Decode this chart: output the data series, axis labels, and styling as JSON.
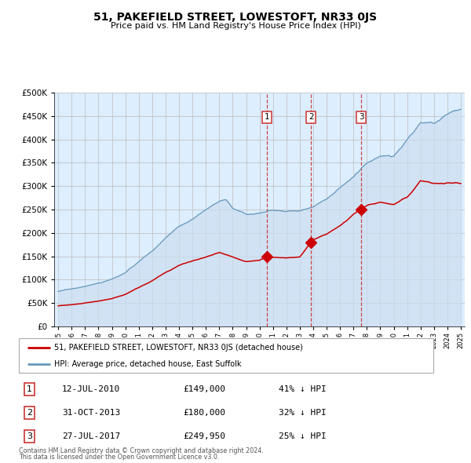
{
  "title": "51, PAKEFIELD STREET, LOWESTOFT, NR33 0JS",
  "subtitle": "Price paid vs. HM Land Registry's House Price Index (HPI)",
  "red_label": "51, PAKEFIELD STREET, LOWESTOFT, NR33 0JS (detached house)",
  "blue_label": "HPI: Average price, detached house, East Suffolk",
  "transactions": [
    {
      "num": 1,
      "date": "12-JUL-2010",
      "price": 149000,
      "hpi_diff": "41% ↓ HPI",
      "x_year": 2010.54
    },
    {
      "num": 2,
      "date": "31-OCT-2013",
      "price": 180000,
      "hpi_diff": "32% ↓ HPI",
      "x_year": 2013.83
    },
    {
      "num": 3,
      "date": "27-JUL-2017",
      "price": 249950,
      "hpi_diff": "25% ↓ HPI",
      "x_year": 2017.57
    }
  ],
  "footnote1": "Contains HM Land Registry data © Crown copyright and database right 2024.",
  "footnote2": "This data is licensed under the Open Government Licence v3.0.",
  "ylim": [
    0,
    500000
  ],
  "yticks": [
    0,
    50000,
    100000,
    150000,
    200000,
    250000,
    300000,
    350000,
    400000,
    450000,
    500000
  ],
  "xlim_start": 1994.7,
  "xlim_end": 2025.3,
  "bg_color": "#ddeeff",
  "plot_bg": "#ffffff",
  "red_color": "#cc0000",
  "blue_line_color": "#6699bb",
  "blue_fill_color": "#ccddf0",
  "vline_color": "#cc3333",
  "marker_color": "#cc0000",
  "grid_color": "#bbbbbb"
}
